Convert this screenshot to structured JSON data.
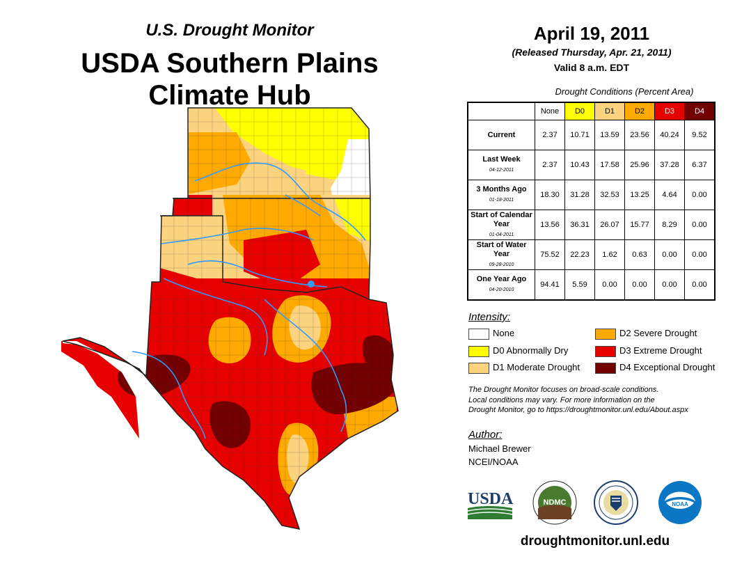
{
  "header": {
    "subtitle": "U.S. Drought Monitor",
    "title_line1": "USDA Southern Plains",
    "title_line2": "Climate Hub"
  },
  "date": {
    "main": "April 19, 2011",
    "released": "(Released Thursday, Apr. 21, 2011)",
    "valid": "Valid 8 a.m. EDT"
  },
  "table": {
    "caption": "Drought Conditions (Percent Area)",
    "columns": [
      {
        "label": "None",
        "color": "#ffffff",
        "text_color": "#000000"
      },
      {
        "label": "D0",
        "color": "#ffff00",
        "text_color": "#000000"
      },
      {
        "label": "D1",
        "color": "#fcd37f",
        "text_color": "#000000"
      },
      {
        "label": "D2",
        "color": "#ffaa00",
        "text_color": "#000000"
      },
      {
        "label": "D3",
        "color": "#e60000",
        "text_color": "#ffffff"
      },
      {
        "label": "D4",
        "color": "#730000",
        "text_color": "#ffffff"
      }
    ],
    "rows": [
      {
        "label": "Current",
        "date": "",
        "values": [
          "2.37",
          "10.71",
          "13.59",
          "23.56",
          "40.24",
          "9.52"
        ]
      },
      {
        "label": "Last Week",
        "date": "04-12-2011",
        "values": [
          "2.37",
          "10.43",
          "17.58",
          "25.96",
          "37.28",
          "6.37"
        ]
      },
      {
        "label": "3 Months Ago",
        "date": "01-18-2011",
        "values": [
          "18.30",
          "31.28",
          "32.53",
          "13.25",
          "4.64",
          "0.00"
        ]
      },
      {
        "label": "Start of Calendar Year",
        "date": "01-04-2011",
        "values": [
          "13.56",
          "36.31",
          "26.07",
          "15.77",
          "8.29",
          "0.00"
        ]
      },
      {
        "label": "Start of Water Year",
        "date": "09-28-2010",
        "values": [
          "75.52",
          "22.23",
          "1.62",
          "0.63",
          "0.00",
          "0.00"
        ]
      },
      {
        "label": "One Year Ago",
        "date": "04-20-2010",
        "values": [
          "94.41",
          "5.59",
          "0.00",
          "0.00",
          "0.00",
          "0.00"
        ]
      }
    ]
  },
  "legend": {
    "title": "Intensity:",
    "items": [
      {
        "label": "None",
        "color": "#ffffff"
      },
      {
        "label": "D0 Abnormally Dry",
        "color": "#ffff00"
      },
      {
        "label": "D1 Moderate Drought",
        "color": "#fcd37f"
      },
      {
        "label": "D2 Severe Drought",
        "color": "#ffaa00"
      },
      {
        "label": "D3 Extreme Drought",
        "color": "#e60000"
      },
      {
        "label": "D4 Exceptional Drought",
        "color": "#730000"
      }
    ]
  },
  "note": {
    "line1": "The Drought Monitor focuses on broad-scale conditions.",
    "line2": "Local conditions may vary. For more information on the",
    "line3": "Drought Monitor, go to https://droughtmonitor.unl.edu/About.aspx"
  },
  "author": {
    "title": "Author:",
    "name": "Michael Brewer",
    "org": "NCEI/NOAA"
  },
  "logos": {
    "usda": "USDA",
    "ndmc": "NDMC",
    "noaa": "NOAA"
  },
  "url": "droughtmonitor.unl.edu",
  "map_colors": {
    "none": "#ffffff",
    "d0": "#ffff00",
    "d1": "#fcd37f",
    "d2": "#ffaa00",
    "d3": "#e60000",
    "d4": "#730000",
    "river": "#3399ff",
    "border": "#222222"
  }
}
